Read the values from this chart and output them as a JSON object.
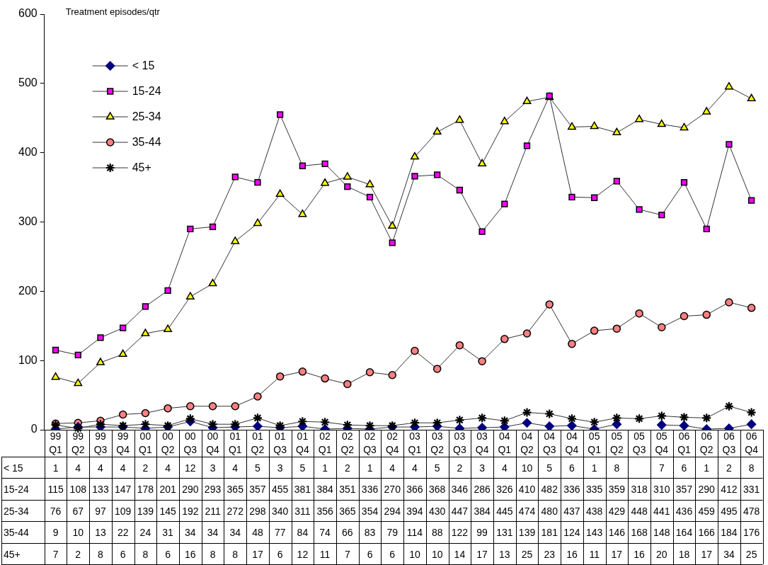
{
  "chart_data": {
    "type": "line",
    "ylabel": "Treatment episodes/qtr",
    "categories": [
      "99 Q1",
      "99 Q2",
      "99 Q3",
      "99 Q4",
      "00 Q1",
      "00 Q2",
      "00 Q3",
      "00 Q4",
      "01 Q1",
      "01 Q2",
      "01 Q3",
      "01 Q4",
      "02 Q1",
      "02 Q2",
      "02 Q3",
      "02 Q4",
      "03 Q1",
      "03 Q2",
      "03 Q3",
      "03 Q4",
      "04 Q1",
      "04 Q2",
      "04 Q3",
      "04 Q4",
      "05 Q1",
      "05 Q2",
      "05 Q3",
      "05 Q4",
      "06 Q1",
      "06 Q2",
      "06 Q3",
      "06 Q4"
    ],
    "series": [
      {
        "name": "< 15",
        "color": "#000080",
        "marker": "diamond",
        "values": [
          1,
          4,
          4,
          4,
          2,
          4,
          12,
          3,
          4,
          5,
          3,
          5,
          1,
          2,
          1,
          4,
          4,
          5,
          2,
          3,
          4,
          10,
          5,
          6,
          1,
          8,
          null,
          7,
          6,
          1,
          2,
          8
        ]
      },
      {
        "name": "15-24",
        "color": "#ff00ff",
        "marker": "square",
        "values": [
          115,
          108,
          133,
          147,
          178,
          201,
          290,
          293,
          365,
          357,
          455,
          381,
          384,
          351,
          336,
          270,
          366,
          368,
          346,
          286,
          326,
          410,
          482,
          336,
          335,
          359,
          318,
          310,
          357,
          290,
          412,
          331
        ]
      },
      {
        "name": "25-34",
        "color": "#ffff00",
        "marker": "triangle",
        "values": [
          76,
          67,
          97,
          109,
          139,
          145,
          192,
          211,
          272,
          298,
          340,
          311,
          356,
          365,
          354,
          294,
          394,
          430,
          447,
          384,
          445,
          474,
          480,
          437,
          438,
          429,
          448,
          441,
          436,
          459,
          495,
          478
        ]
      },
      {
        "name": "35-44",
        "color": "#ff8080",
        "marker": "circle",
        "values": [
          9,
          10,
          13,
          22,
          24,
          31,
          34,
          34,
          34,
          48,
          77,
          84,
          74,
          66,
          83,
          79,
          114,
          88,
          122,
          99,
          131,
          139,
          181,
          124,
          143,
          146,
          168,
          148,
          164,
          166,
          184,
          176
        ]
      },
      {
        "name": "45+",
        "color": "#000000",
        "marker": "star",
        "values": [
          7,
          2,
          8,
          6,
          8,
          6,
          16,
          8,
          8,
          17,
          6,
          12,
          11,
          7,
          6,
          6,
          10,
          10,
          14,
          17,
          13,
          25,
          23,
          16,
          11,
          17,
          16,
          20,
          18,
          17,
          34,
          25
        ]
      }
    ],
    "ylim": [
      0,
      600
    ],
    "yticks": [
      0,
      100,
      200,
      300,
      400,
      500,
      600
    ],
    "grid": false,
    "legend": "top left",
    "data_labels": true
  }
}
